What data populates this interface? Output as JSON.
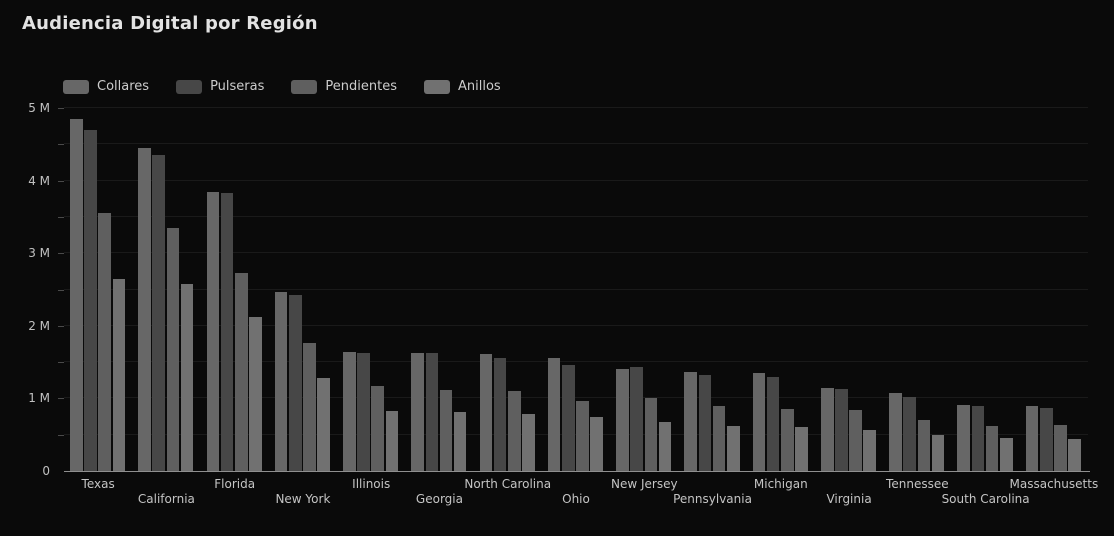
{
  "title": "Audiencia Digital por Región",
  "colors": {
    "background": "#0a0a0a",
    "title_text": "#e3e3e3",
    "legend_text": "#cccccc",
    "axis_text": "#c0c0c0",
    "gridline": "#1a1a1a",
    "axis_line": "#8f8f8f"
  },
  "chart_data": {
    "type": "bar",
    "title": "Audiencia Digital por Región",
    "unit": "M",
    "ylim": [
      0,
      5
    ],
    "grid_step": 0.5,
    "grid_on": true,
    "legend_position": "top-left",
    "y_tick_labels": [
      "0",
      "1 M",
      "2 M",
      "3 M",
      "4 M",
      "5 M"
    ],
    "categories": [
      "Texas",
      "California",
      "Florida",
      "New York",
      "Illinois",
      "Georgia",
      "North Carolina",
      "Ohio",
      "New Jersey",
      "Pennsylvania",
      "Michigan",
      "Virginia",
      "Tennessee",
      "South Carolina",
      "Massachusetts"
    ],
    "series": [
      {
        "name": "Collares",
        "color": "#676767",
        "values": [
          4.85,
          4.45,
          3.85,
          2.46,
          1.64,
          1.63,
          1.61,
          1.55,
          1.41,
          1.37,
          1.35,
          1.14,
          1.07,
          0.91,
          0.9
        ]
      },
      {
        "name": "Pulseras",
        "color": "#474747",
        "values": [
          4.7,
          4.35,
          3.83,
          2.43,
          1.62,
          1.62,
          1.55,
          1.46,
          1.43,
          1.32,
          1.3,
          1.13,
          1.02,
          0.89,
          0.87
        ]
      },
      {
        "name": "Pendientes",
        "color": "#5f5f5f",
        "values": [
          3.55,
          3.35,
          2.73,
          1.76,
          1.17,
          1.12,
          1.1,
          0.97,
          1.01,
          0.9,
          0.86,
          0.84,
          0.7,
          0.62,
          0.63
        ]
      },
      {
        "name": "Anillos",
        "color": "#717171",
        "values": [
          2.65,
          2.57,
          2.12,
          1.28,
          0.83,
          0.81,
          0.78,
          0.74,
          0.68,
          0.62,
          0.61,
          0.57,
          0.5,
          0.45,
          0.44
        ]
      }
    ]
  }
}
